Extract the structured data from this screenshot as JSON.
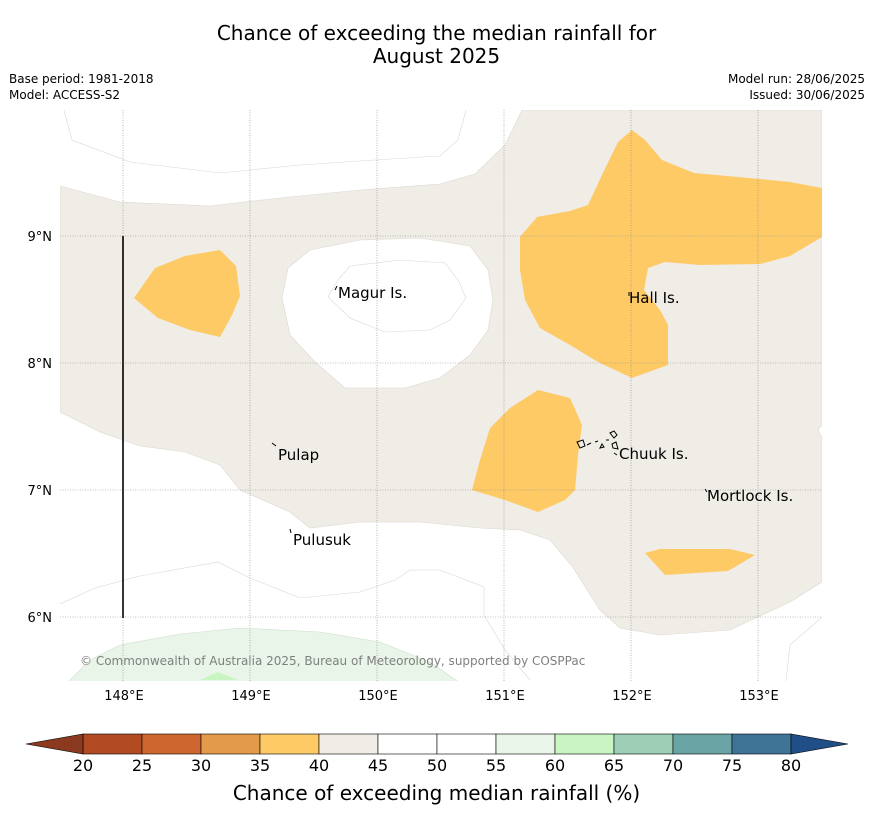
{
  "title_line1": "Chance of exceeding the median rainfall for",
  "title_line2": "August 2025",
  "meta_left": {
    "base_period": "Base period: 1981-2018",
    "model": "Model: ACCESS-S2"
  },
  "meta_right": {
    "model_run": "Model run: 28/06/2025",
    "issued": "Issued: 30/06/2025"
  },
  "map": {
    "lon_ticks": [
      "148°E",
      "149°E",
      "150°E",
      "151°E",
      "152°E",
      "153°E"
    ],
    "lat_ticks": [
      "9°N",
      "8°N",
      "7°N",
      "6°N"
    ],
    "places": [
      "Magur Is.",
      "Hall Is.",
      "Pulap",
      "Chuuk Is.",
      "Mortlock Is.",
      "Pulusuk"
    ],
    "copyright": "© Commonwealth of Australia 2025, Bureau of Meteorology, supported by COSPPac",
    "colors": {
      "band_40_45": "#f0ece6",
      "band_35_40": "#fdca66",
      "band_55_60": "#e8f5e8",
      "band_60_65": "#c8f5c2"
    }
  },
  "colorbar": {
    "ticks": [
      "20",
      "25",
      "30",
      "35",
      "40",
      "45",
      "50",
      "55",
      "60",
      "65",
      "70",
      "75",
      "80"
    ],
    "colors": [
      "#b24b22",
      "#ce6630",
      "#e49a4b",
      "#fdca66",
      "#f0ece6",
      "#ffffff",
      "#ffffff",
      "#e8f5e8",
      "#c8f5c2",
      "#9ccfb6",
      "#6ba4a5",
      "#3f7497"
    ],
    "under_color": "#8c3a1f",
    "over_color": "#1f4f86",
    "label": "Chance of exceeding median rainfall (%)"
  }
}
